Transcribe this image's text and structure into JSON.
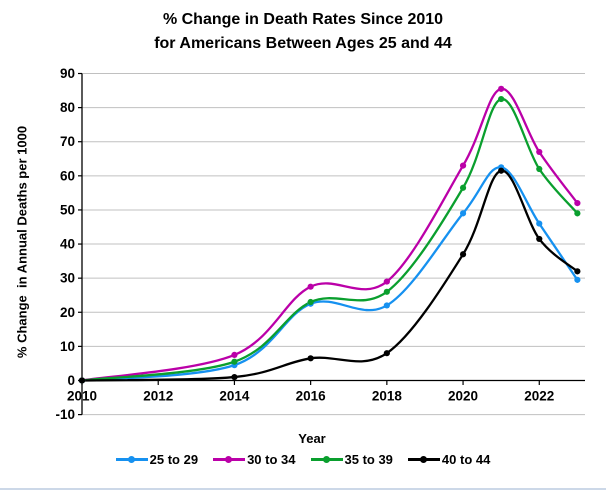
{
  "page": {
    "bottom_border_color": "#ccd8e8",
    "grid_color": "#c0c0c0",
    "axis_color": "#000000"
  },
  "chart_data": {
    "type": "line",
    "title_line1": "% Change in Death Rates Since 2010",
    "title_line2": "for Americans Between Ages 25 and 44",
    "xlabel": "Year",
    "ylabel": "% Change  in Annual Deaths per 1000",
    "x": [
      2010,
      2014,
      2016,
      2018,
      2020,
      2021,
      2022,
      2023
    ],
    "series": [
      {
        "name": "25 to 29",
        "color": "#1691F0",
        "values": [
          0,
          4.5,
          22.5,
          22,
          49,
          62.5,
          46,
          29.5
        ]
      },
      {
        "name": "30 to 34",
        "color": "#BB00A8",
        "values": [
          0,
          7.5,
          27.5,
          29,
          63,
          85.5,
          67,
          52
        ]
      },
      {
        "name": "35 to 39",
        "color": "#0A9F2E",
        "values": [
          0,
          5.5,
          23,
          26,
          56.5,
          82.5,
          62,
          49
        ]
      },
      {
        "name": "40 to 44",
        "color": "#000000",
        "values": [
          0,
          1,
          6.5,
          8,
          37,
          61.5,
          41.5,
          32
        ]
      }
    ],
    "xlim": [
      2010,
      2023.2
    ],
    "ylim": [
      -10,
      90
    ],
    "ytick_step": 10,
    "xticks": [
      2010,
      2012,
      2014,
      2016,
      2018,
      2020,
      2022
    ],
    "grid": "horizontal",
    "legend_position": "bottom",
    "line_smoothing": true
  }
}
